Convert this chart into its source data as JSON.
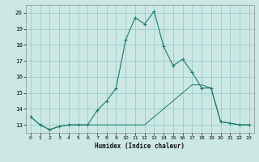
{
  "title": "",
  "xlabel": "Humidex (Indice chaleur)",
  "background_color": "#cce8e4",
  "grid_color": "#99cccc",
  "line_color": "#1a7a6e",
  "xlim": [
    -0.5,
    23.5
  ],
  "ylim": [
    12.5,
    20.5
  ],
  "yticks": [
    13,
    14,
    15,
    16,
    17,
    18,
    19,
    20
  ],
  "xticks": [
    0,
    1,
    2,
    3,
    4,
    5,
    6,
    7,
    8,
    9,
    10,
    11,
    12,
    13,
    14,
    15,
    16,
    17,
    18,
    19,
    20,
    21,
    22,
    23
  ],
  "line1_x": [
    0,
    1,
    2,
    3,
    4,
    5,
    6,
    7,
    8,
    9,
    10,
    11,
    12,
    13,
    14,
    15,
    16,
    17,
    18,
    19,
    20,
    21,
    22,
    23
  ],
  "line1_y": [
    13.5,
    13.0,
    12.7,
    12.9,
    13.0,
    13.0,
    13.0,
    13.9,
    14.5,
    15.3,
    18.3,
    19.7,
    19.3,
    20.1,
    17.9,
    16.7,
    17.1,
    16.3,
    15.3,
    15.3,
    13.2,
    13.1,
    13.0,
    13.0
  ],
  "line2_x": [
    0,
    1,
    2,
    3,
    4,
    5,
    6,
    7,
    8,
    9,
    10,
    11,
    12,
    13,
    14,
    15,
    16,
    17,
    18,
    19,
    20,
    21,
    22,
    23
  ],
  "line2_y": [
    13.5,
    13.0,
    12.7,
    12.9,
    13.0,
    13.0,
    13.0,
    13.0,
    13.0,
    13.0,
    13.0,
    13.0,
    13.0,
    13.5,
    14.0,
    14.5,
    15.0,
    15.5,
    15.5,
    15.3,
    13.2,
    13.1,
    13.0,
    13.0
  ]
}
